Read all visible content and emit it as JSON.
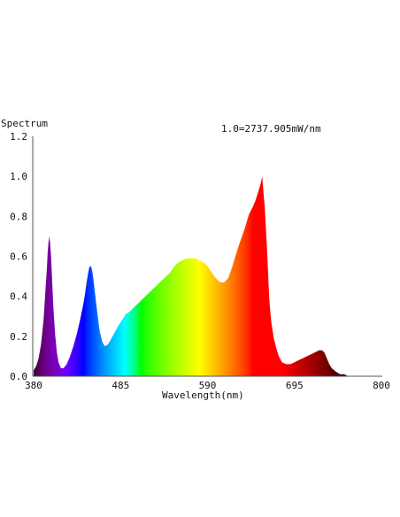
{
  "chart_data": {
    "type": "area",
    "title": "Spectrum",
    "annotation": "1.0=2737.905mW/nm",
    "xlabel": "Wavelength(nm)",
    "ylabel": "",
    "xlim": [
      380,
      800
    ],
    "ylim": [
      0,
      1.2
    ],
    "x_ticks": [
      "380",
      "485",
      "590",
      "695",
      "800"
    ],
    "y_ticks": [
      "0.0",
      "0.2",
      "0.4",
      "0.6",
      "0.8",
      "1.0",
      "1.2"
    ],
    "x_tick_values": [
      380,
      485,
      590,
      695,
      800
    ],
    "y_tick_values": [
      0,
      0.2,
      0.4,
      0.6,
      0.8,
      1.0,
      1.2
    ],
    "grid": false,
    "fill": "wavelength-color-gradient",
    "series": [
      {
        "x": [
          380,
          383,
          386,
          389,
          392,
          394,
          396,
          397,
          398,
          399,
          400,
          401,
          402,
          403,
          404,
          406,
          408,
          410,
          413,
          416,
          420,
          424,
          428,
          432,
          436,
          440,
          442,
          444,
          446,
          447,
          448,
          449,
          450,
          451,
          452,
          454,
          456,
          458,
          460,
          463,
          466,
          470,
          474,
          478,
          482,
          485,
          488,
          491,
          495,
          500,
          505,
          510,
          515,
          520,
          525,
          530,
          535,
          540,
          545,
          550,
          555,
          560,
          565,
          570,
          575,
          580,
          585,
          590,
          595,
          600,
          605,
          610,
          615,
          620,
          625,
          630,
          635,
          640,
          645,
          648,
          651,
          654,
          656,
          658,
          659,
          660,
          661,
          662,
          663,
          664,
          665,
          667,
          670,
          673,
          676,
          680,
          685,
          690,
          695,
          700,
          705,
          710,
          715,
          720,
          725,
          728,
          731,
          733,
          735,
          737,
          740,
          743,
          746,
          750,
          755,
          760,
          770,
          780,
          790,
          800
        ],
        "y": [
          0.03,
          0.05,
          0.09,
          0.16,
          0.28,
          0.41,
          0.54,
          0.62,
          0.67,
          0.7,
          0.66,
          0.6,
          0.51,
          0.42,
          0.33,
          0.21,
          0.12,
          0.07,
          0.04,
          0.04,
          0.06,
          0.1,
          0.15,
          0.21,
          0.28,
          0.36,
          0.41,
          0.47,
          0.52,
          0.54,
          0.55,
          0.55,
          0.54,
          0.52,
          0.49,
          0.42,
          0.35,
          0.28,
          0.22,
          0.17,
          0.15,
          0.16,
          0.19,
          0.22,
          0.25,
          0.27,
          0.29,
          0.31,
          0.32,
          0.34,
          0.36,
          0.38,
          0.4,
          0.42,
          0.44,
          0.46,
          0.48,
          0.5,
          0.52,
          0.55,
          0.57,
          0.58,
          0.59,
          0.59,
          0.59,
          0.58,
          0.57,
          0.55,
          0.52,
          0.49,
          0.47,
          0.47,
          0.49,
          0.55,
          0.62,
          0.68,
          0.74,
          0.81,
          0.85,
          0.88,
          0.92,
          0.96,
          1.0,
          0.9,
          0.85,
          0.78,
          0.7,
          0.62,
          0.53,
          0.44,
          0.36,
          0.27,
          0.19,
          0.14,
          0.1,
          0.07,
          0.06,
          0.06,
          0.07,
          0.08,
          0.09,
          0.1,
          0.11,
          0.12,
          0.13,
          0.13,
          0.12,
          0.1,
          0.08,
          0.06,
          0.04,
          0.03,
          0.02,
          0.01,
          0.01,
          0.0,
          0.0,
          0.0,
          0.0,
          0.0
        ]
      }
    ]
  }
}
